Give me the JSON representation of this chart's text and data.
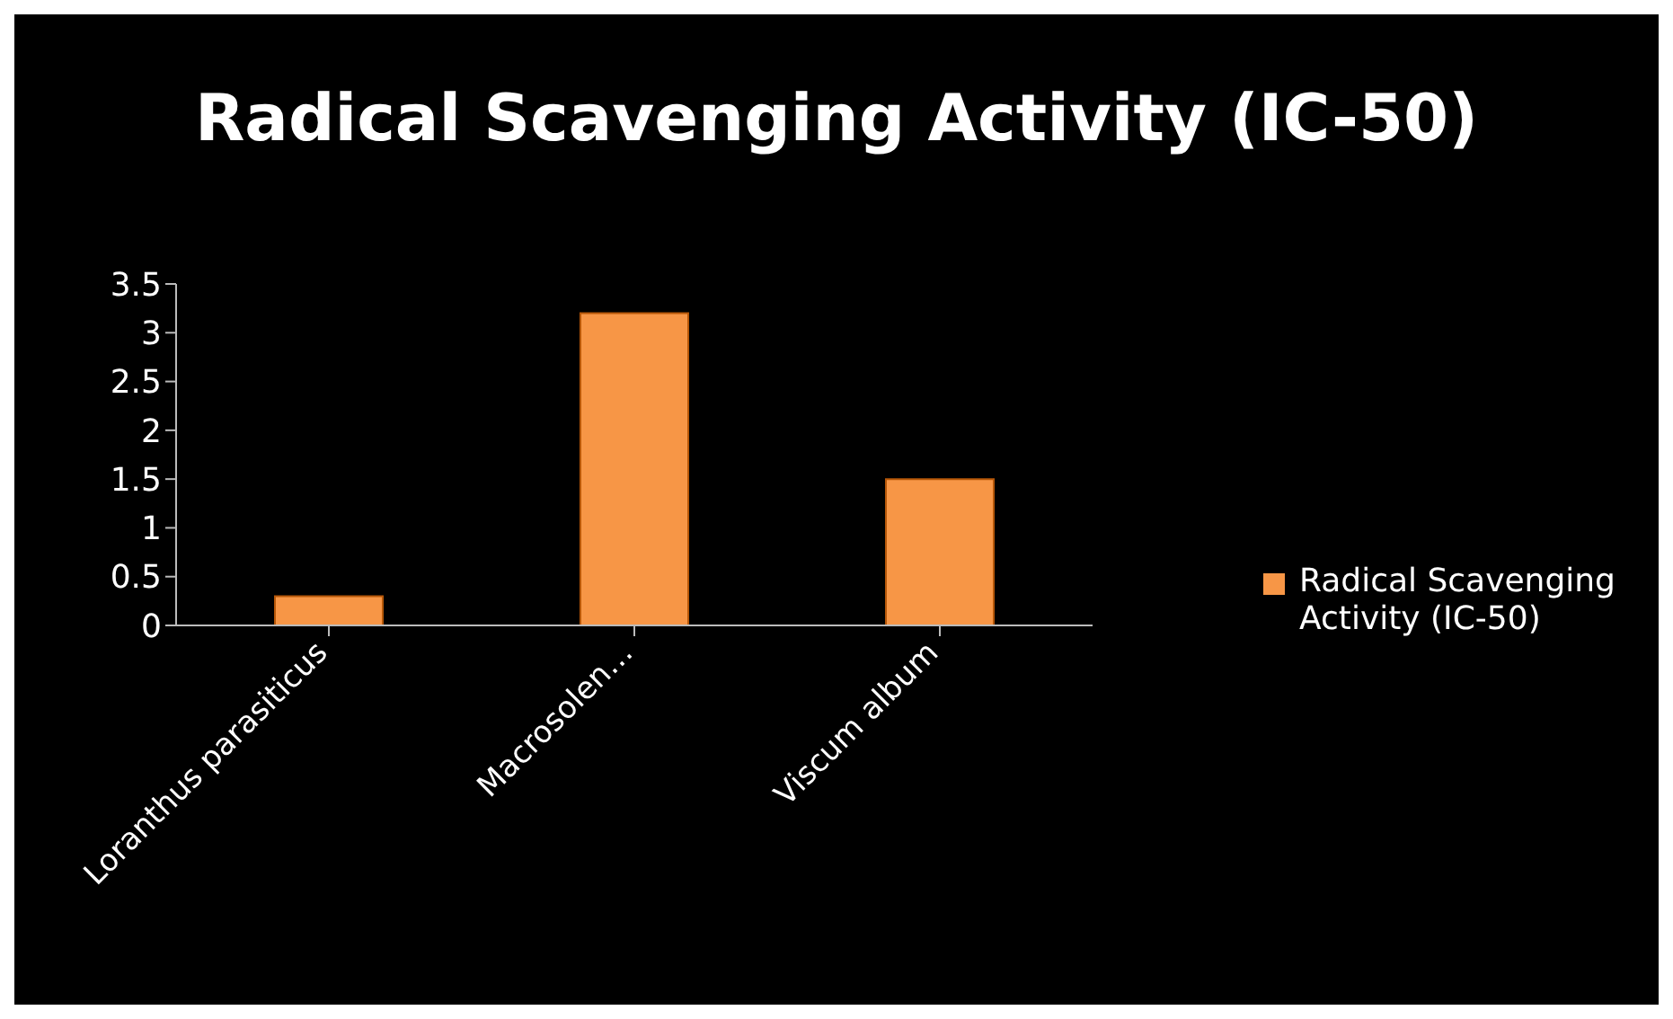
{
  "chart_data": {
    "type": "bar",
    "title": "Radical Scavenging Activity (IC-50)",
    "categories": [
      "Loranthus parasiticus",
      "Macrosolen…",
      "Viscum album"
    ],
    "series": [
      {
        "name": "Radical Scavenging Activity (IC-50)",
        "color": "#f79646",
        "values": [
          0.3,
          3.2,
          1.5
        ]
      }
    ],
    "ylim": [
      0,
      3.5
    ],
    "yticks": [
      0,
      0.5,
      1,
      1.5,
      2,
      2.5,
      3,
      3.5
    ],
    "grid": false,
    "legend": "right"
  }
}
